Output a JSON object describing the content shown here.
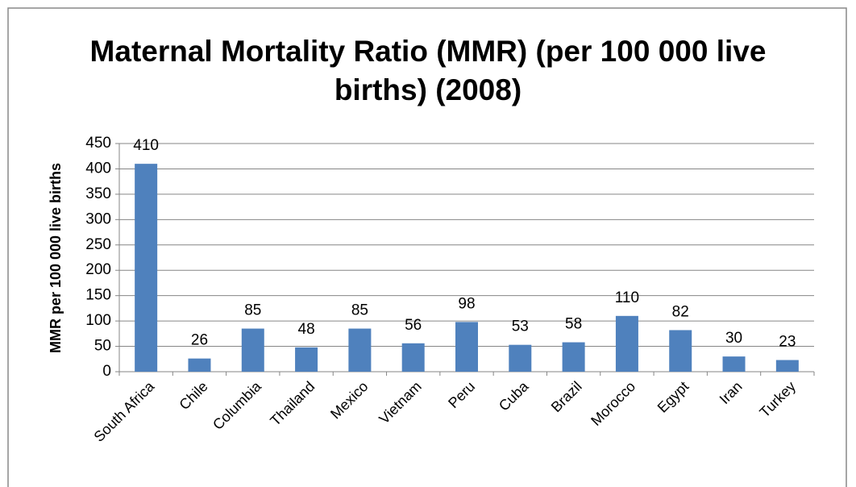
{
  "chart_data": {
    "type": "bar",
    "title": "Maternal Mortality Ratio (MMR) (per 100 000 live births) (2008)",
    "y_label": "MMR per 100 000 live births",
    "categories": [
      "South Africa",
      "Chile",
      "Columbia",
      "Thailand",
      "Mexico",
      "Vietnam",
      "Peru",
      "Cuba",
      "Brazil",
      "Morocco",
      "Egypt",
      "Iran",
      "Turkey"
    ],
    "values": [
      410,
      26,
      85,
      48,
      85,
      56,
      98,
      53,
      58,
      110,
      82,
      30,
      23
    ],
    "color": "#4f81bd",
    "ylim": [
      0,
      450
    ],
    "yticks": [
      0,
      50,
      100,
      150,
      200,
      250,
      300,
      350,
      400,
      450
    ],
    "grid": true
  }
}
